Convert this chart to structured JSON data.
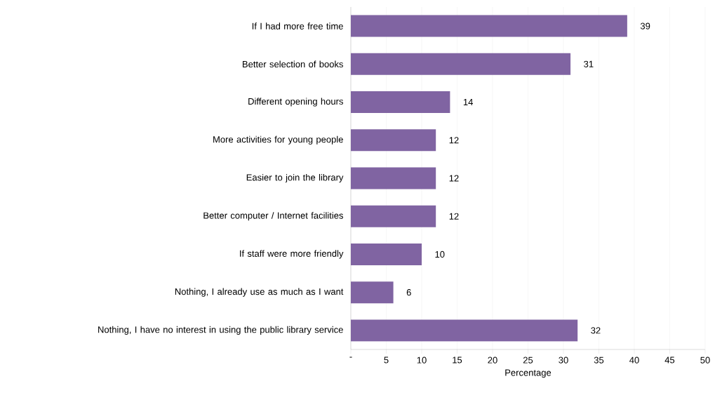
{
  "chart_data": {
    "type": "bar",
    "orientation": "horizontal",
    "categories": [
      "If I had more free time",
      "Better selection of books",
      "Different opening hours",
      "More activities for young people",
      "Easier to join the library",
      "Better computer / Internet facilities",
      "If staff were more friendly",
      "Nothing, I already use as much as I want",
      "Nothing, I have no interest in using the public library service"
    ],
    "values": [
      39,
      31,
      14,
      12,
      12,
      12,
      10,
      6,
      32
    ],
    "color": "#8064a2",
    "xlabel": "Percentage",
    "xlim": [
      0,
      50
    ],
    "xticks": [
      {
        "value": 0,
        "label": "-"
      },
      5,
      10,
      15,
      20,
      25,
      30,
      35,
      40,
      45,
      50
    ],
    "grid": "x",
    "data_labels": true
  }
}
